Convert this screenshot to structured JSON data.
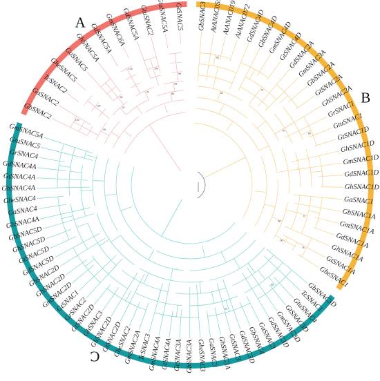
{
  "figure": {
    "clades": [
      {
        "label": "A",
        "color": "#f0746c",
        "branch_color": "#f2b8b8",
        "leaves": [
          "GbSNAC2",
          "GaSNAC2",
          "TcSNAC2",
          "GheSNAC5",
          "GaSNAC5",
          "GhSNAC5A",
          "GdSNAC5A",
          "GmSNAC6A",
          "GdSNAC5A",
          "GtuSNAC2",
          "GtuSNAC5A",
          "GtSNAC5"
        ]
      },
      {
        "label": "B",
        "color": "#f5b53c",
        "branch_color": "#f3d28a",
        "leaves": [
          "GbSNAC3",
          "AtANAC055",
          "AtANAC019",
          "AtANAC072",
          "GdSNAC4D",
          "GbSNAC4D",
          "GmSNAC4D",
          "GtSNAC4D",
          "GdSNAC2A",
          "GmSNAC3A",
          "GbSNAC2A",
          "GtSNAC2A",
          "GhSNAC2A",
          "GrSNAC1",
          "GtuSNAC1",
          "GtSNAC1D",
          "GhSNAC1D",
          "GmSNAC1D",
          "GdSNAC1D",
          "GhSNAC1D",
          "GaSNAC1",
          "GbSNAC1A",
          "GmSNAC1A",
          "GdSNAC1A",
          "GhSNAC1A",
          "GtSNAC1A",
          "GheSNAC1"
        ]
      },
      {
        "label": "C",
        "color": "#159aa0",
        "branch_color": "#7ed3d3",
        "leaves": [
          "GbSNAC3D",
          "TcSNAC1",
          "GtuSNAC4",
          "GtSNAC3D",
          "GmSNAC3D",
          "GdSNAC3D",
          "GaSNAC3",
          "GbSNAC4",
          "GdSNAC3D",
          "GtSNAC3",
          "GhSNAC3A",
          "GaSNAC3",
          "GheSNAC3",
          "GbSNAC3A",
          "GtSNAC3A",
          "GtSNAC4A",
          "GmSNAC4A",
          "TcSNAC3",
          "GmSNAC2A",
          "GheSNAC2",
          "GtSNAC2D",
          "GhSNAC2D",
          "GhSNAC3",
          "GtSNAC2D",
          "GrSNAC2",
          "GtSNAC1",
          "GmSNAC2D",
          "GbSNAC2D",
          "GhSNAC2D",
          "GdSNAC5D",
          "GtSNAC5D",
          "GhSNAC5D",
          "GbSNAC5D",
          "GhSNAC4A",
          "GaSNAC4",
          "GheSNAC4",
          "GbSNAC4A",
          "GtSNAC4A",
          "GdSNAC4A",
          "GrSNAC4",
          "GtuSNAC5",
          "GmSNAC5A"
        ]
      }
    ],
    "bootstrap_values": [
      "100",
      "100",
      "100",
      "100",
      "98",
      "96",
      "95",
      "93",
      "91",
      "88",
      "86",
      "82",
      "80",
      "76",
      "74",
      "72",
      "70",
      "66",
      "62",
      "58",
      "55",
      "52"
    ],
    "outgroup_line_color": "#777777"
  }
}
